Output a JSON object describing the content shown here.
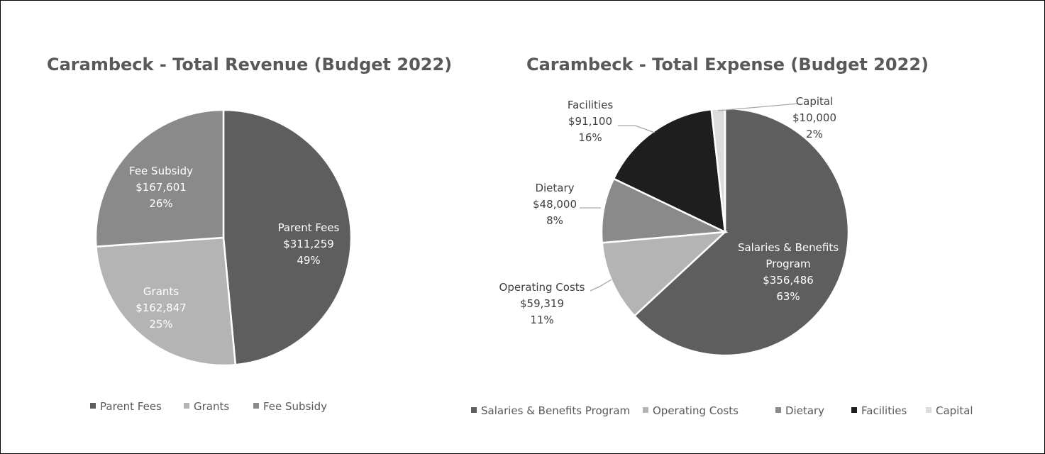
{
  "chart_data": [
    {
      "type": "pie",
      "title": "Carambeck - Total Revenue (Budget 2022)",
      "legend_position": "bottom",
      "slices": [
        {
          "name": "Parent Fees",
          "value": 311259,
          "value_label": "$311,259",
          "percent_label": "49%",
          "color": "#5e5e5e"
        },
        {
          "name": "Grants",
          "value": 162847,
          "value_label": "$162,847",
          "percent_label": "25%",
          "color": "#b4b4b4"
        },
        {
          "name": "Fee Subsidy",
          "value": 167601,
          "value_label": "$167,601",
          "percent_label": "26%",
          "color": "#8a8a8a"
        }
      ]
    },
    {
      "type": "pie",
      "title": "Carambeck  - Total Expense (Budget 2022)",
      "legend_position": "bottom",
      "slices": [
        {
          "name": "Salaries & Benefits Program",
          "value": 356486,
          "value_label": "$356,486",
          "percent_label": "63%",
          "color": "#5e5e5e"
        },
        {
          "name": "Operating Costs",
          "value": 59319,
          "value_label": "$59,319",
          "percent_label": "11%",
          "color": "#b4b4b4"
        },
        {
          "name": "Dietary",
          "value": 48000,
          "value_label": "$48,000",
          "percent_label": "8%",
          "color": "#8a8a8a"
        },
        {
          "name": "Facilities",
          "value": 91100,
          "value_label": "$91,100",
          "percent_label": "16%",
          "color": "#1e1e1e"
        },
        {
          "name": "Capital",
          "value": 10000,
          "value_label": "$10,000",
          "percent_label": "2%",
          "color": "#dcdcdc"
        }
      ]
    }
  ]
}
